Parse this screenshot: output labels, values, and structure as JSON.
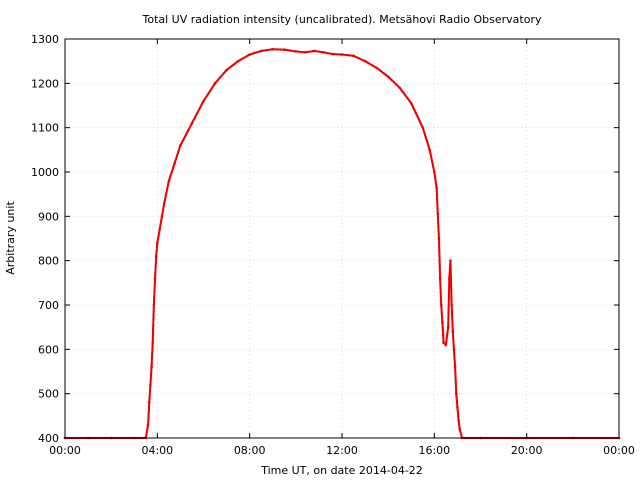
{
  "chart_data": {
    "type": "scatter",
    "title": "Total UV radiation intensity (uncalibrated). Metsähovi Radio Observatory",
    "xlabel": "Time UT, on date 2014-04-22",
    "ylabel": "Arbitrary unit",
    "xlim": [
      0,
      24
    ],
    "ylim": [
      400,
      1300
    ],
    "x_ticks": [
      {
        "value": 0,
        "label": "00:00"
      },
      {
        "value": 4,
        "label": "04:00"
      },
      {
        "value": 8,
        "label": "08:00"
      },
      {
        "value": 12,
        "label": "12:00"
      },
      {
        "value": 16,
        "label": "16:00"
      },
      {
        "value": 20,
        "label": "20:00"
      },
      {
        "value": 24,
        "label": "00:00"
      }
    ],
    "y_ticks": [
      {
        "value": 400,
        "label": "400"
      },
      {
        "value": 500,
        "label": "500"
      },
      {
        "value": 600,
        "label": "600"
      },
      {
        "value": 700,
        "label": "700"
      },
      {
        "value": 800,
        "label": "800"
      },
      {
        "value": 900,
        "label": "900"
      },
      {
        "value": 1000,
        "label": "1000"
      },
      {
        "value": 1100,
        "label": "1100"
      },
      {
        "value": 1200,
        "label": "1200"
      },
      {
        "value": 1300,
        "label": "1300"
      }
    ],
    "grid": true,
    "legend": "none",
    "marker_color": "#ee0000",
    "series": [
      {
        "x": [
          0.0,
          1.0,
          2.0,
          3.0,
          3.5,
          3.6,
          3.65,
          3.7,
          3.75,
          3.8,
          3.85,
          3.9,
          3.95,
          4.0,
          4.1,
          4.2,
          4.3,
          4.5,
          4.75,
          5.0,
          5.5,
          6.0,
          6.5,
          7.0,
          7.5,
          8.0,
          8.5,
          9.0,
          9.5,
          10.0,
          10.4,
          10.8,
          11.2,
          11.6,
          12.0,
          12.5,
          13.0,
          13.5,
          14.0,
          14.5,
          15.0,
          15.5,
          15.8,
          16.0,
          16.1,
          16.15,
          16.2,
          16.25,
          16.3,
          16.35,
          16.4,
          16.5,
          16.6,
          16.65,
          16.7,
          16.75,
          16.8,
          16.85,
          16.9,
          16.95,
          17.0,
          17.05,
          17.1,
          17.2,
          18.0,
          20.0,
          22.0,
          24.0
        ],
        "y": [
          400,
          400,
          400,
          400,
          400,
          430,
          480,
          520,
          560,
          615,
          700,
          760,
          810,
          840,
          870,
          900,
          930,
          980,
          1020,
          1060,
          1110,
          1160,
          1200,
          1230,
          1250,
          1265,
          1273,
          1277,
          1276,
          1272,
          1270,
          1273,
          1270,
          1266,
          1265,
          1262,
          1250,
          1235,
          1215,
          1190,
          1155,
          1100,
          1050,
          1000,
          965,
          905,
          850,
          760,
          700,
          660,
          615,
          610,
          650,
          760,
          800,
          700,
          640,
          600,
          560,
          500,
          470,
          440,
          420,
          400,
          400,
          400,
          400,
          400
        ]
      }
    ]
  }
}
